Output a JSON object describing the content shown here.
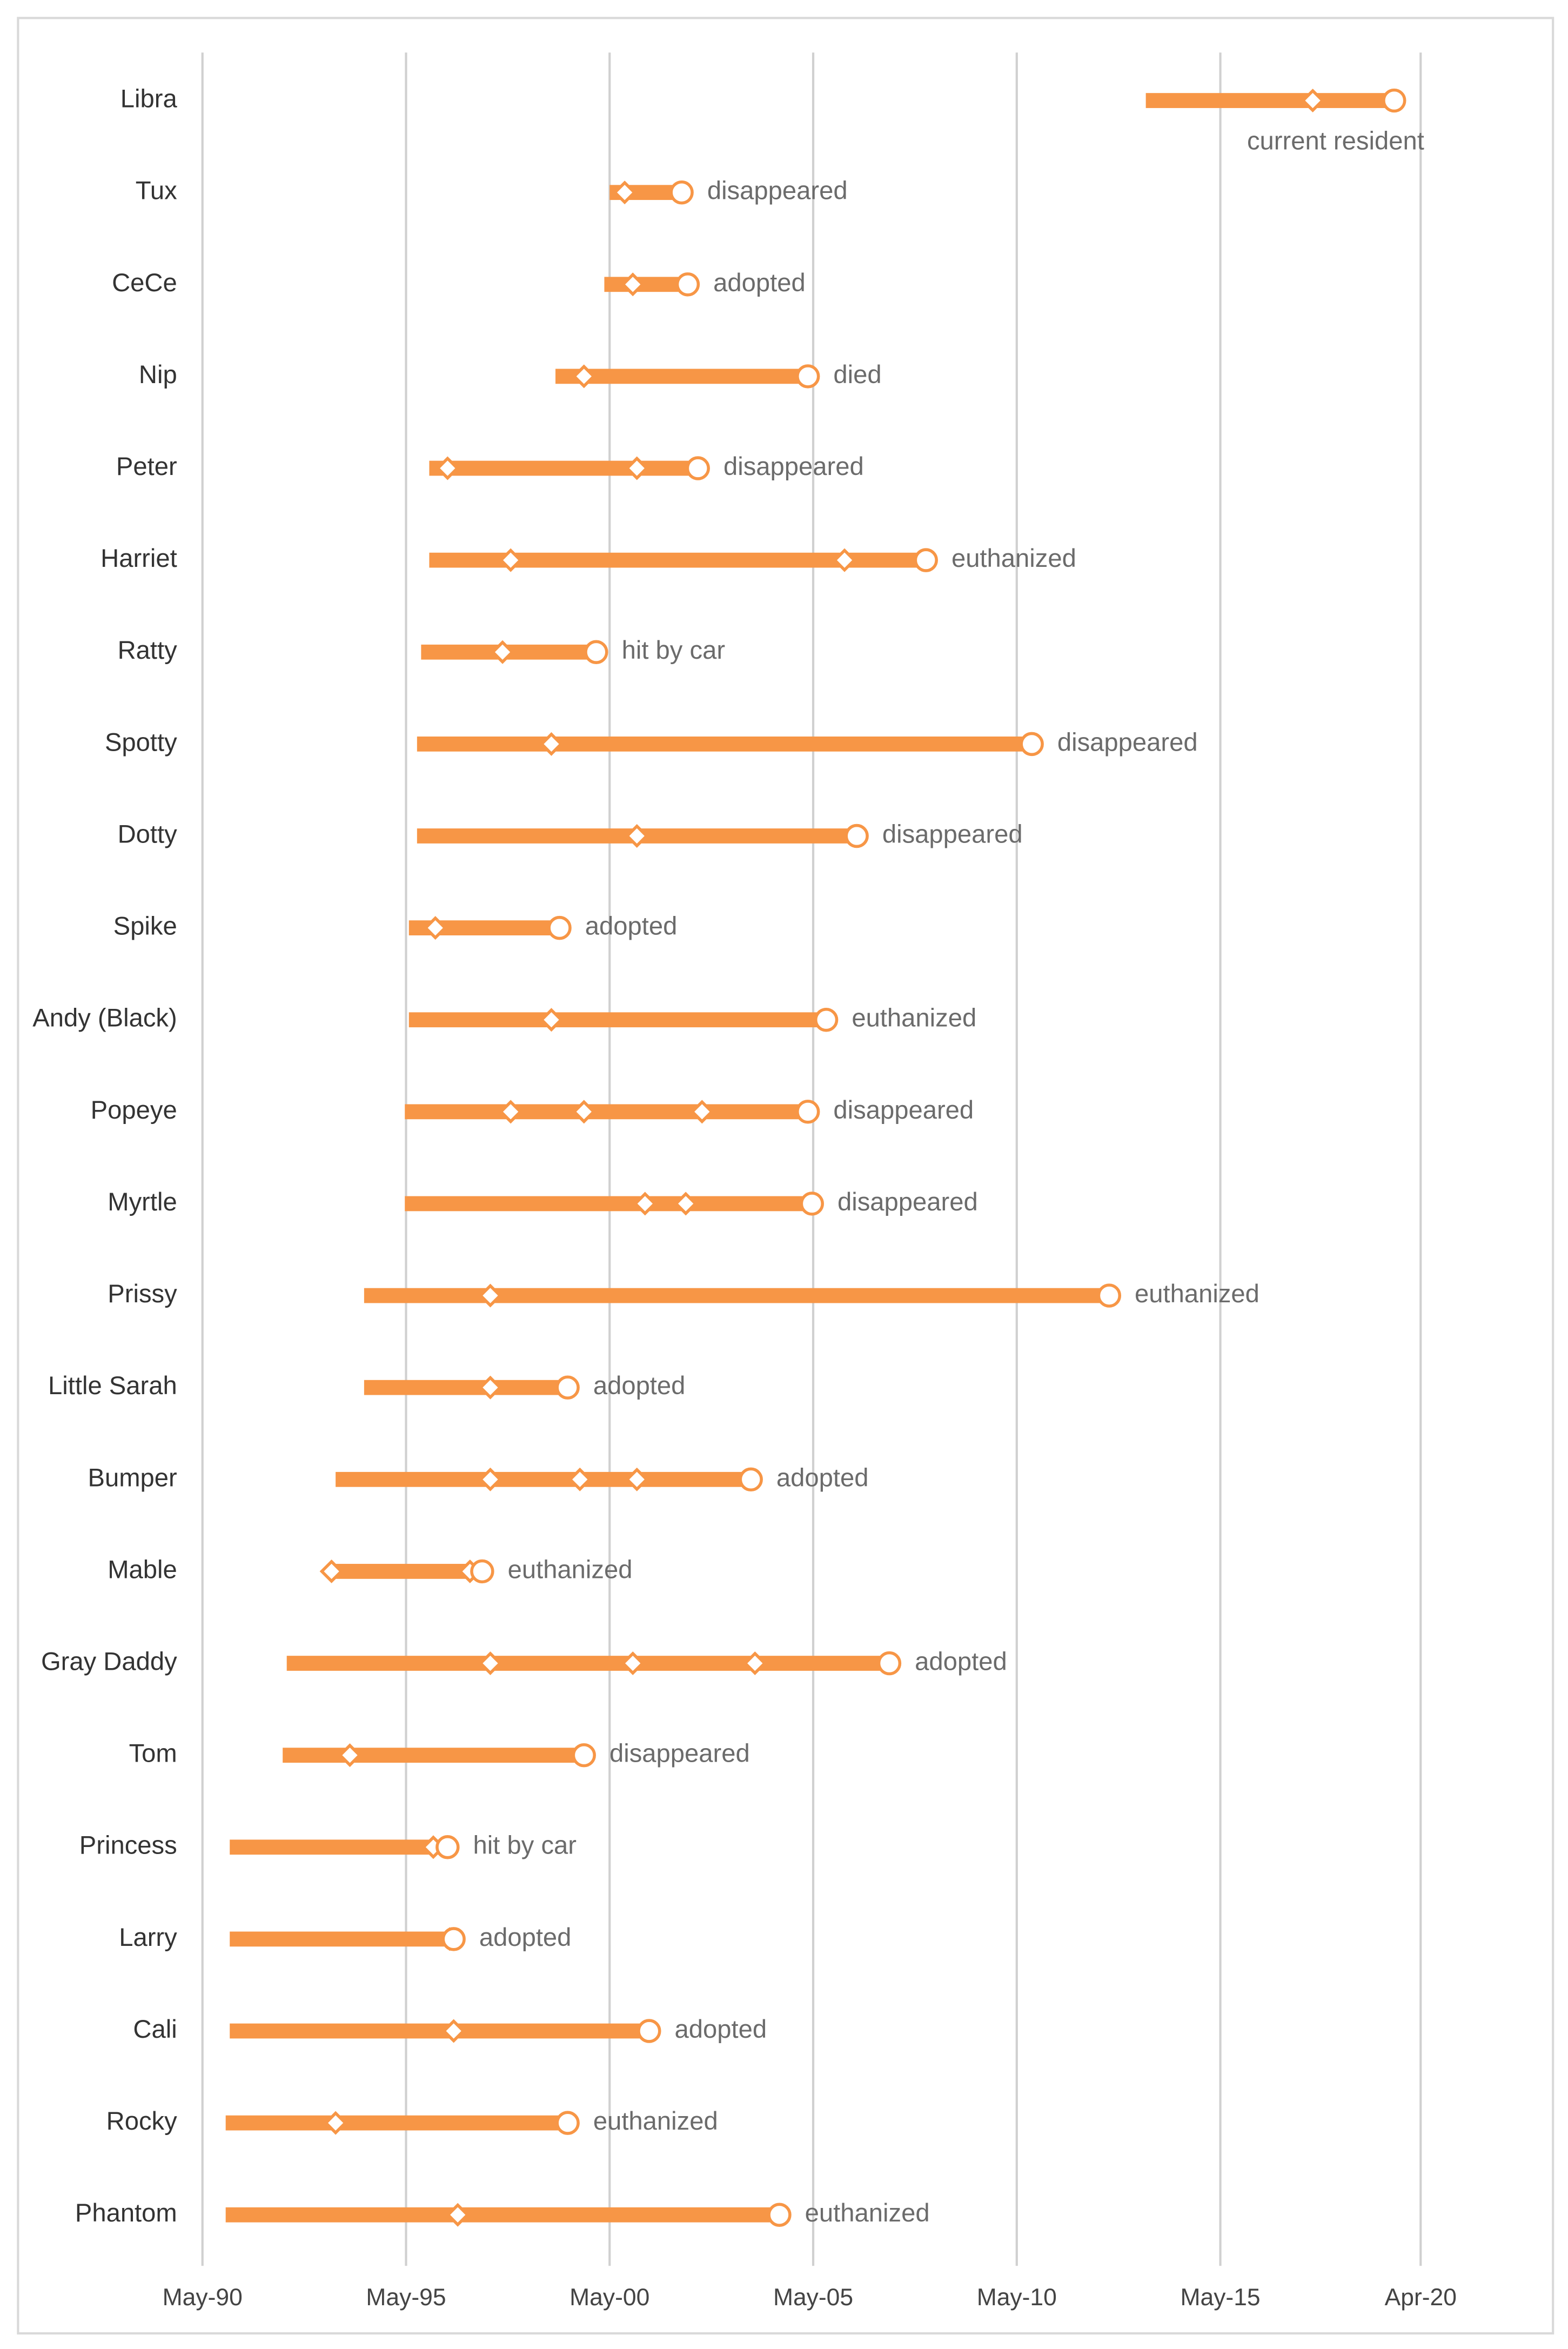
{
  "chart_data": {
    "type": "timeline",
    "categories": [
      "Libra",
      "Tux",
      "CeCe",
      "Nip",
      "Peter",
      "Harriet",
      "Ratty",
      "Spotty",
      "Dotty",
      "Spike",
      "Andy (Black)",
      "Popeye",
      "Myrtle",
      "Prissy",
      "Little Sarah",
      "Bumper",
      "Mable",
      "Gray Daddy",
      "Tom",
      "Princess",
      "Larry",
      "Cali",
      "Rocky",
      "Phantom"
    ],
    "start": [
      2013.5,
      2000.33,
      2000.2,
      1999.0,
      1995.9,
      1995.9,
      1995.7,
      1995.6,
      1995.6,
      1995.4,
      1995.4,
      1995.3,
      1995.3,
      1994.3,
      1994.3,
      1993.6,
      1993.5,
      1992.4,
      1992.3,
      1991.0,
      1991.0,
      1991.0,
      1990.9,
      1990.9
    ],
    "markers": [
      [
        2017.6
      ],
      [
        2000.7
      ],
      [
        2000.9
      ],
      [
        1999.7
      ],
      [
        1996.35,
        2001.0
      ],
      [
        1997.9,
        2006.1
      ],
      [
        1997.7
      ],
      [
        1998.9
      ],
      [
        2001.0
      ],
      [
        1996.05
      ],
      [
        1998.9
      ],
      [
        1997.9,
        1999.7,
        2002.6
      ],
      [
        2001.2,
        2002.2
      ],
      [
        1997.4
      ],
      [
        1997.4
      ],
      [
        1997.4,
        1999.6,
        2001.0
      ],
      [
        1993.5,
        1996.9
      ],
      [
        1997.4,
        2000.9,
        2003.9
      ],
      [
        1993.95
      ],
      [
        1996.0
      ],
      [
        1996.4
      ],
      [
        1996.5
      ],
      [
        1993.6
      ],
      [
        1996.6
      ]
    ],
    "end": [
      2019.6,
      2002.1,
      2002.25,
      2005.2,
      2002.5,
      2008.1,
      2000.0,
      2010.7,
      2006.4,
      1999.1,
      2005.65,
      2005.2,
      2005.3,
      2012.6,
      1999.3,
      2003.8,
      1997.2,
      2007.2,
      1999.7,
      1996.35,
      1996.5,
      2001.3,
      1999.3,
      2004.5
    ],
    "status": [
      "current resident",
      "disappeared",
      "adopted",
      "died",
      "disappeared",
      "euthanized",
      "hit by car",
      "disappeared",
      "disappeared",
      "adopted",
      "euthanized",
      "disappeared",
      "disappeared",
      "euthanized",
      "adopted",
      "adopted",
      "euthanized",
      "adopted",
      "disappeared",
      "hit by car",
      "adopted",
      "adopted",
      "euthanized",
      "euthanized"
    ],
    "color": "#f79646",
    "xlim": [
      1985.8,
      2023.5
    ],
    "xticks": [
      {
        "value": 1990.33,
        "label": "May-90"
      },
      {
        "value": 1995.33,
        "label": "May-95"
      },
      {
        "value": 2000.33,
        "label": "May-00"
      },
      {
        "value": 2005.33,
        "label": "May-05"
      },
      {
        "value": 2010.33,
        "label": "May-10"
      },
      {
        "value": 2015.33,
        "label": "May-15"
      },
      {
        "value": 2020.25,
        "label": "Apr-20"
      }
    ],
    "grid": true
  }
}
